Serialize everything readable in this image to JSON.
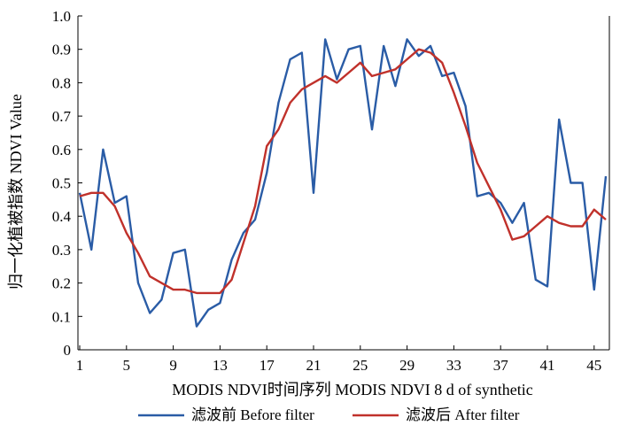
{
  "chart_data": {
    "type": "line",
    "title": "",
    "xlabel": "MODIS NDVI时间序列 MODIS NDVI 8 d of synthetic",
    "ylabel": "归一化植被指数 NDVI Value",
    "xlim": [
      1,
      46
    ],
    "ylim": [
      0,
      1.0
    ],
    "xticks": [
      1,
      5,
      9,
      13,
      17,
      21,
      25,
      29,
      33,
      37,
      41,
      45
    ],
    "yticks": [
      0,
      0.1,
      0.2,
      0.3,
      0.4,
      0.5,
      0.6,
      0.7,
      0.8,
      0.9,
      1.0
    ],
    "ytick_labels": [
      "0",
      "0.1",
      "0.2",
      "0.3",
      "0.4",
      "0.5",
      "0.6",
      "0.7",
      "0.8",
      "0.9",
      "1.0"
    ],
    "grid": false,
    "legend_position": "bottom",
    "x": [
      1,
      2,
      3,
      4,
      5,
      6,
      7,
      8,
      9,
      10,
      11,
      12,
      13,
      14,
      15,
      16,
      17,
      18,
      19,
      20,
      21,
      22,
      23,
      24,
      25,
      26,
      27,
      28,
      29,
      30,
      31,
      32,
      33,
      34,
      35,
      36,
      37,
      38,
      39,
      40,
      41,
      42,
      43,
      44,
      45,
      46
    ],
    "series": [
      {
        "name": "滤波前 Before filter",
        "color": "#2a5ca6",
        "values": [
          0.47,
          0.3,
          0.6,
          0.44,
          0.46,
          0.2,
          0.11,
          0.15,
          0.29,
          0.3,
          0.07,
          0.12,
          0.14,
          0.27,
          0.35,
          0.39,
          0.53,
          0.74,
          0.87,
          0.89,
          0.47,
          0.93,
          0.81,
          0.9,
          0.91,
          0.66,
          0.91,
          0.79,
          0.93,
          0.88,
          0.91,
          0.82,
          0.83,
          0.73,
          0.46,
          0.47,
          0.44,
          0.38,
          0.44,
          0.21,
          0.19,
          0.69,
          0.5,
          0.5,
          0.18,
          0.52
        ]
      },
      {
        "name": "滤波后 After filter",
        "color": "#c0312b",
        "values": [
          0.46,
          0.47,
          0.47,
          0.43,
          0.35,
          0.29,
          0.22,
          0.2,
          0.18,
          0.18,
          0.17,
          0.17,
          0.17,
          0.21,
          0.32,
          0.43,
          0.61,
          0.66,
          0.74,
          0.78,
          0.8,
          0.82,
          0.8,
          0.83,
          0.86,
          0.82,
          0.83,
          0.84,
          0.87,
          0.9,
          0.89,
          0.86,
          0.77,
          0.67,
          0.56,
          0.49,
          0.42,
          0.33,
          0.34,
          0.37,
          0.4,
          0.38,
          0.37,
          0.37,
          0.42,
          0.39
        ]
      }
    ]
  }
}
